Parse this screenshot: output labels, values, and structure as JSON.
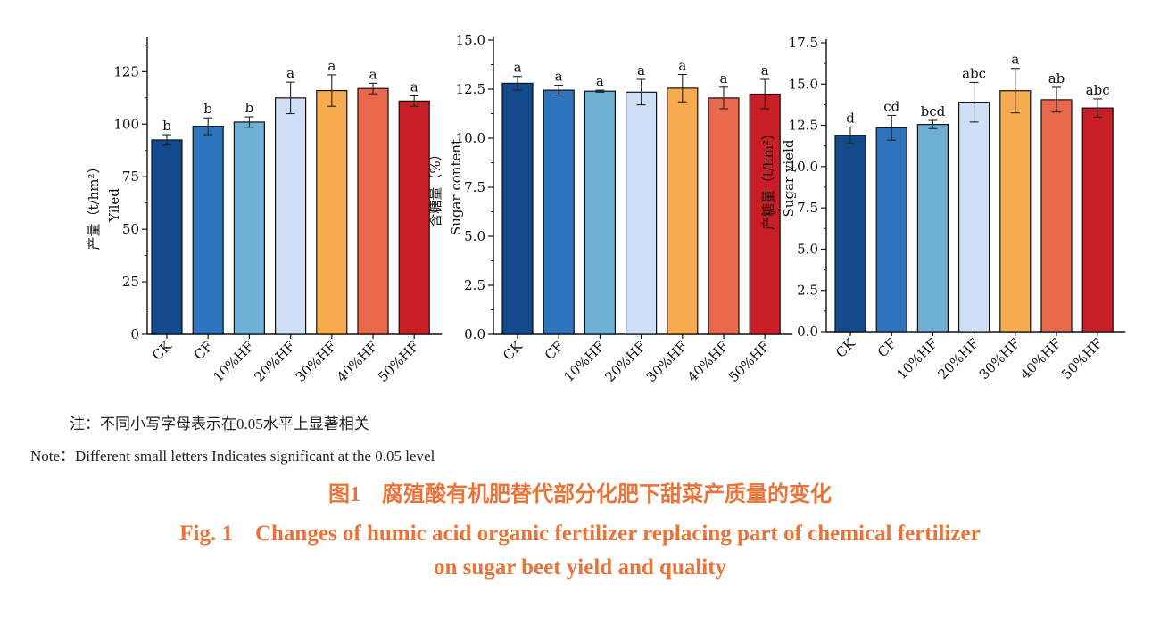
{
  "colors": {
    "bars": [
      "#134a8e",
      "#2e73bb",
      "#6fb0d6",
      "#cfdff5",
      "#f8aa4e",
      "#e9694e",
      "#c81e25"
    ],
    "caption": "#e8743a"
  },
  "note_cn": "注：不同小写字母表示在0.05水平上显著相关",
  "note_en": "Note：Different small letters Indicates significant at the 0.05 level",
  "caption_cn": "图1　腐殖酸有机肥替代部分化肥下甜菜产质量的变化",
  "caption_en_line1": "Fig. 1　Changes of humic acid organic fertilizer replacing part of chemical fertilizer",
  "caption_en_line2": "on sugar beet yield and quality",
  "chart_data": [
    {
      "type": "bar",
      "categories": [
        "CK",
        "CF",
        "10%HF",
        "20%HF",
        "30%HF",
        "40%HF",
        "50%HF"
      ],
      "values": [
        92.5,
        99.0,
        101.0,
        112.5,
        116.0,
        117.0,
        111.0
      ],
      "errors": [
        2.5,
        4.0,
        2.5,
        7.5,
        7.5,
        2.5,
        2.5
      ],
      "significance": [
        "b",
        "b",
        "b",
        "a",
        "a",
        "a",
        "a"
      ],
      "ylabel_cn": "产量（t/hm²）",
      "ylabel_en": "Yiled",
      "ylim": [
        0,
        140
      ],
      "yticks": [
        0,
        25,
        50,
        75,
        100,
        125
      ],
      "ytick_labels": [
        "0",
        "25",
        "50",
        "75",
        "100",
        "125"
      ]
    },
    {
      "type": "bar",
      "categories": [
        "CK",
        "CF",
        "10%HF",
        "20%HF",
        "30%HF",
        "40%HF",
        "50%HF"
      ],
      "values": [
        12.8,
        12.45,
        12.4,
        12.35,
        12.55,
        12.05,
        12.25
      ],
      "errors": [
        0.35,
        0.25,
        0.05,
        0.65,
        0.7,
        0.55,
        0.75
      ],
      "significance": [
        "a",
        "a",
        "a",
        "a",
        "a",
        "a",
        "a"
      ],
      "ylabel_cn": "含糖量（%）",
      "ylabel_en": "Sugar content",
      "ylim": [
        0,
        15
      ],
      "yticks": [
        0,
        2.5,
        5,
        7.5,
        10,
        12.5,
        15
      ],
      "ytick_labels": [
        "0.0",
        "2.5",
        "5.0",
        "7.5",
        "10.0",
        "12.5",
        "15.0"
      ]
    },
    {
      "type": "bar",
      "categories": [
        "CK",
        "CF",
        "10%HF",
        "20%HF",
        "30%HF",
        "40%HF",
        "50%HF"
      ],
      "values": [
        11.9,
        12.35,
        12.55,
        13.9,
        14.6,
        14.05,
        13.55
      ],
      "errors": [
        0.5,
        0.75,
        0.25,
        1.2,
        1.35,
        0.75,
        0.55
      ],
      "significance": [
        "d",
        "cd",
        "bcd",
        "abc",
        "a",
        "ab",
        "abc"
      ],
      "ylabel_cn": "产糖量（t/hm²）",
      "ylabel_en": "Sugar yield",
      "ylim": [
        0,
        17.5
      ],
      "yticks": [
        0,
        2.5,
        5,
        7.5,
        10,
        12.5,
        15,
        17.5
      ],
      "ytick_labels": [
        "0.0",
        "2.5",
        "5.0",
        "7.5",
        "10.0",
        "12.5",
        "15.0",
        "17.5"
      ]
    }
  ]
}
